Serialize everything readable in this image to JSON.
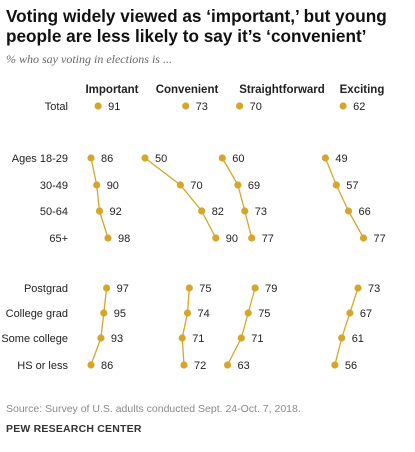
{
  "title": "Voting widely viewed as ‘important,’ but young people are less likely to say it’s ‘convenient’",
  "subtitle": "% who say voting in elections is ...",
  "source": "Source: Survey of U.S. adults conducted Sept. 24-Oct. 7, 2018.",
  "org": "PEW RESEARCH CENTER",
  "colors": {
    "dot": "#d5a62b",
    "line": "#d5a62b",
    "text": "#222222"
  },
  "chart_data": {
    "type": "dot",
    "columns": [
      "Important",
      "Convenient",
      "Straightforward",
      "Exciting"
    ],
    "groups": [
      {
        "name": "total",
        "rows": [
          "Total"
        ],
        "values": [
          [
            91,
            73,
            70,
            62
          ]
        ],
        "connected": false
      },
      {
        "name": "age",
        "rows": [
          "Ages 18-29",
          "30-49",
          "50-64",
          "65+"
        ],
        "values": [
          [
            86,
            50,
            60,
            49
          ],
          [
            90,
            70,
            69,
            57
          ],
          [
            92,
            82,
            73,
            66
          ],
          [
            98,
            90,
            77,
            77
          ]
        ],
        "connected": true
      },
      {
        "name": "education",
        "rows": [
          "Postgrad",
          "College grad",
          "Some college",
          "HS or less"
        ],
        "values": [
          [
            97,
            75,
            79,
            73
          ],
          [
            95,
            74,
            75,
            67
          ],
          [
            93,
            71,
            71,
            61
          ],
          [
            86,
            72,
            63,
            56
          ]
        ],
        "connected": true
      }
    ]
  }
}
